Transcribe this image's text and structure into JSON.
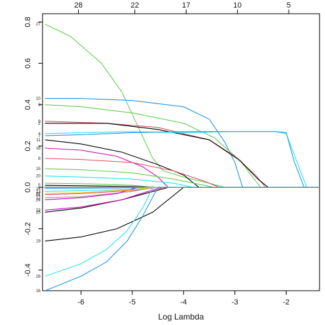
{
  "chart_data": {
    "type": "line",
    "xlabel": "Log Lambda",
    "ylabel": "",
    "xlim": [
      -6.75,
      -1.35
    ],
    "ylim": [
      -0.5,
      0.84
    ],
    "x_ticks": [
      {
        "value": -6,
        "label": "-6"
      },
      {
        "value": -5,
        "label": "-5"
      },
      {
        "value": -4,
        "label": "-4"
      },
      {
        "value": -3,
        "label": "-3"
      },
      {
        "value": -2,
        "label": "-2"
      }
    ],
    "y_ticks": [
      {
        "value": -0.4,
        "label": "-0.4"
      },
      {
        "value": -0.2,
        "label": "-0.2"
      },
      {
        "value": 0.0,
        "label": "0.0"
      },
      {
        "value": 0.2,
        "label": "0.2"
      },
      {
        "value": 0.4,
        "label": "0.4"
      },
      {
        "value": 0.6,
        "label": "0.6"
      },
      {
        "value": 0.8,
        "label": "0.8"
      }
    ],
    "top_ticks": [
      {
        "value": -6.05,
        "label": "28"
      },
      {
        "value": -4.95,
        "label": "22"
      },
      {
        "value": -3.95,
        "label": "17"
      },
      {
        "value": -2.95,
        "label": "10"
      },
      {
        "value": -1.95,
        "label": "5"
      }
    ],
    "series": [
      {
        "name": "27",
        "color": "#61D04F",
        "values": [
          [
            -6.7,
            0.79
          ],
          [
            -6.2,
            0.73
          ],
          [
            -5.6,
            0.6
          ],
          [
            -5.2,
            0.46
          ],
          [
            -4.9,
            0.3
          ],
          [
            -4.6,
            0.14
          ],
          [
            -4.4,
            0.08
          ],
          [
            -4.0,
            0.05
          ],
          [
            -3.5,
            0.02
          ],
          [
            -3.2,
            0.0
          ]
        ]
      },
      {
        "name": "10",
        "color": "#2297E6",
        "values": [
          [
            -6.7,
            0.43
          ],
          [
            -6.0,
            0.43
          ],
          [
            -5.0,
            0.42
          ],
          [
            -4.0,
            0.39
          ],
          [
            -3.5,
            0.33
          ],
          [
            -3.2,
            0.22
          ],
          [
            -3.0,
            0.12
          ],
          [
            -2.85,
            0.0
          ]
        ]
      },
      {
        "name": "3",
        "color": "#61D04F",
        "values": [
          [
            -6.7,
            0.4
          ],
          [
            -6.0,
            0.39
          ],
          [
            -5.0,
            0.36
          ],
          [
            -4.0,
            0.31
          ],
          [
            -3.4,
            0.24
          ],
          [
            -2.9,
            0.13
          ],
          [
            -2.5,
            0.0
          ]
        ]
      },
      {
        "name": "9",
        "color": "#DF536B",
        "values": [
          [
            -6.7,
            0.32
          ],
          [
            -5.5,
            0.31
          ],
          [
            -4.5,
            0.29
          ],
          [
            -3.5,
            0.23
          ],
          [
            -3.0,
            0.15
          ],
          [
            -2.6,
            0.06
          ],
          [
            -2.4,
            0.0
          ]
        ]
      },
      {
        "name": "2",
        "color": "#000000",
        "values": [
          [
            -6.7,
            0.31
          ],
          [
            -5.5,
            0.31
          ],
          [
            -4.5,
            0.28
          ],
          [
            -3.5,
            0.23
          ],
          [
            -2.9,
            0.13
          ],
          [
            -2.55,
            0.04
          ],
          [
            -2.35,
            0.0
          ]
        ]
      },
      {
        "name": "4",
        "color": "#28E2E5",
        "values": [
          [
            -6.7,
            0.26
          ],
          [
            -6.0,
            0.265
          ],
          [
            -5.0,
            0.27
          ],
          [
            -4.0,
            0.265
          ],
          [
            -3.0,
            0.27
          ],
          [
            -2.2,
            0.27
          ],
          [
            -2.0,
            0.26
          ],
          [
            -1.8,
            0.13
          ],
          [
            -1.6,
            0.0
          ]
        ]
      },
      {
        "name": "7",
        "color": "#2297E6",
        "values": [
          [
            -6.7,
            0.25
          ],
          [
            -6.0,
            0.255
          ],
          [
            -5.0,
            0.265
          ],
          [
            -4.0,
            0.27
          ],
          [
            -3.0,
            0.27
          ],
          [
            -2.2,
            0.27
          ],
          [
            -2.0,
            0.265
          ],
          [
            -1.85,
            0.13
          ],
          [
            -1.65,
            0.0
          ]
        ]
      },
      {
        "name": "11",
        "color": "#000000",
        "values": [
          [
            -6.7,
            0.23
          ],
          [
            -6.0,
            0.21
          ],
          [
            -5.2,
            0.17
          ],
          [
            -4.5,
            0.11
          ],
          [
            -4.0,
            0.06
          ],
          [
            -3.7,
            0.0
          ]
        ]
      },
      {
        "name": "18",
        "color": "#CD0BBC",
        "values": [
          [
            -6.7,
            0.19
          ],
          [
            -6.0,
            0.18
          ],
          [
            -5.3,
            0.15
          ],
          [
            -4.8,
            0.1
          ],
          [
            -4.5,
            0.05
          ],
          [
            -4.3,
            0.0
          ]
        ]
      },
      {
        "name": "8",
        "color": "#DF536B",
        "values": [
          [
            -6.7,
            0.14
          ],
          [
            -6.0,
            0.135
          ],
          [
            -5.0,
            0.12
          ],
          [
            -4.2,
            0.08
          ],
          [
            -3.6,
            0.03
          ],
          [
            -3.3,
            0.0
          ]
        ]
      },
      {
        "name": "15",
        "color": "#61D04F",
        "values": [
          [
            -6.7,
            0.09
          ],
          [
            -6.0,
            0.085
          ],
          [
            -5.0,
            0.07
          ],
          [
            -4.2,
            0.04
          ],
          [
            -3.6,
            0.01
          ],
          [
            -3.4,
            0.0
          ]
        ]
      },
      {
        "name": "20",
        "color": "#28E2E5",
        "values": [
          [
            -6.7,
            0.055
          ],
          [
            -6.0,
            0.05
          ],
          [
            -5.0,
            0.04
          ],
          [
            -4.2,
            0.02
          ],
          [
            -3.8,
            0.0
          ]
        ]
      },
      {
        "name": "25",
        "color": "#000000",
        "values": [
          [
            -6.7,
            -0.12
          ],
          [
            -6.0,
            -0.1
          ],
          [
            -5.2,
            -0.06
          ],
          [
            -4.6,
            -0.02
          ],
          [
            -4.3,
            0.0
          ]
        ]
      },
      {
        "name": "23",
        "color": "#CD0BBC",
        "values": [
          [
            -6.7,
            -0.11
          ],
          [
            -6.0,
            -0.095
          ],
          [
            -5.2,
            -0.06
          ],
          [
            -4.7,
            -0.02
          ],
          [
            -4.4,
            0.0
          ]
        ]
      },
      {
        "name": "13",
        "color": "#28E2E5",
        "values": [
          [
            -6.7,
            -0.02
          ],
          [
            -6.0,
            -0.015
          ],
          [
            -5.0,
            -0.01
          ],
          [
            -4.5,
            0.0
          ]
        ]
      },
      {
        "name": "21",
        "color": "#DF536B",
        "values": [
          [
            -6.7,
            -0.035
          ],
          [
            -6.0,
            -0.03
          ],
          [
            -5.0,
            -0.015
          ],
          [
            -4.5,
            0.0
          ]
        ]
      },
      {
        "name": "12",
        "color": "#9E9E9E",
        "values": [
          [
            -6.7,
            -0.05
          ],
          [
            -6.0,
            -0.045
          ],
          [
            -5.0,
            -0.02
          ],
          [
            -4.6,
            0.0
          ]
        ]
      },
      {
        "name": "5",
        "color": "#000000",
        "values": [
          [
            -6.7,
            0.01
          ],
          [
            -6.0,
            0.008
          ],
          [
            -5.0,
            0.004
          ],
          [
            -4.5,
            0.0
          ]
        ]
      },
      {
        "name": "24",
        "color": "#CD0BBC",
        "values": [
          [
            -6.7,
            -0.06
          ],
          [
            -6.0,
            -0.05
          ],
          [
            -5.3,
            -0.03
          ],
          [
            -4.9,
            0.0
          ]
        ]
      },
      {
        "name": "14",
        "color": "#2297E6",
        "values": [
          [
            -6.7,
            -0.005
          ],
          [
            -6.0,
            -0.004
          ],
          [
            -5.0,
            -0.002
          ],
          [
            -4.5,
            0.0
          ]
        ]
      },
      {
        "name": "6",
        "color": "#9E9E9E",
        "values": [
          [
            -6.7,
            0.003
          ],
          [
            -6.0,
            0.002
          ],
          [
            -5.0,
            0.001
          ],
          [
            -4.5,
            0.0
          ]
        ]
      },
      {
        "name": "22",
        "color": "#F5C710",
        "values": [
          [
            -6.7,
            -0.03
          ],
          [
            -6.0,
            -0.025
          ],
          [
            -5.0,
            -0.012
          ],
          [
            -4.6,
            0.0
          ]
        ]
      },
      {
        "name": "26",
        "color": "#61D04F",
        "values": [
          [
            -6.7,
            0.02
          ],
          [
            -6.0,
            0.018
          ],
          [
            -5.0,
            0.01
          ],
          [
            -4.5,
            0.0
          ]
        ]
      },
      {
        "name": "19",
        "color": "#000000",
        "values": [
          [
            -6.7,
            -0.26
          ],
          [
            -6.0,
            -0.24
          ],
          [
            -5.3,
            -0.2
          ],
          [
            -4.6,
            -0.12
          ],
          [
            -4.0,
            0.0
          ]
        ]
      },
      {
        "name": "28",
        "color": "#28E2E5",
        "values": [
          [
            -6.7,
            -0.43
          ],
          [
            -6.0,
            -0.37
          ],
          [
            -5.5,
            -0.3
          ],
          [
            -5.1,
            -0.21
          ],
          [
            -4.8,
            -0.1
          ],
          [
            -4.6,
            0.0
          ]
        ]
      },
      {
        "name": "16",
        "color": "#2297E6",
        "values": [
          [
            -6.7,
            -0.5
          ],
          [
            -6.0,
            -0.43
          ],
          [
            -5.5,
            -0.36
          ],
          [
            -5.1,
            -0.26
          ],
          [
            -4.8,
            -0.14
          ],
          [
            -4.5,
            0.0
          ]
        ]
      }
    ],
    "labels": [
      {
        "text": "27",
        "y": 0.79
      },
      {
        "text": "10",
        "y": 0.43
      },
      {
        "text": "3",
        "y": 0.4
      },
      {
        "text": "9",
        "y": 0.32
      },
      {
        "text": "2",
        "y": 0.31
      },
      {
        "text": "4",
        "y": 0.26
      },
      {
        "text": "7",
        "y": 0.25
      },
      {
        "text": "11",
        "y": 0.23
      },
      {
        "text": "18",
        "y": 0.19
      },
      {
        "text": "8",
        "y": 0.14
      },
      {
        "text": "15",
        "y": 0.09
      },
      {
        "text": "20",
        "y": 0.055
      },
      {
        "text": "5",
        "y": 0.01
      },
      {
        "text": "14",
        "y": -0.005
      },
      {
        "text": "13",
        "y": -0.02
      },
      {
        "text": "22",
        "y": -0.03
      },
      {
        "text": "21",
        "y": -0.035
      },
      {
        "text": "12",
        "y": -0.05
      },
      {
        "text": "24",
        "y": -0.06
      },
      {
        "text": "23",
        "y": -0.11
      },
      {
        "text": "25",
        "y": -0.12
      },
      {
        "text": "19",
        "y": -0.26
      },
      {
        "text": "28",
        "y": -0.43
      },
      {
        "text": "16",
        "y": -0.5
      }
    ],
    "grid": false
  }
}
